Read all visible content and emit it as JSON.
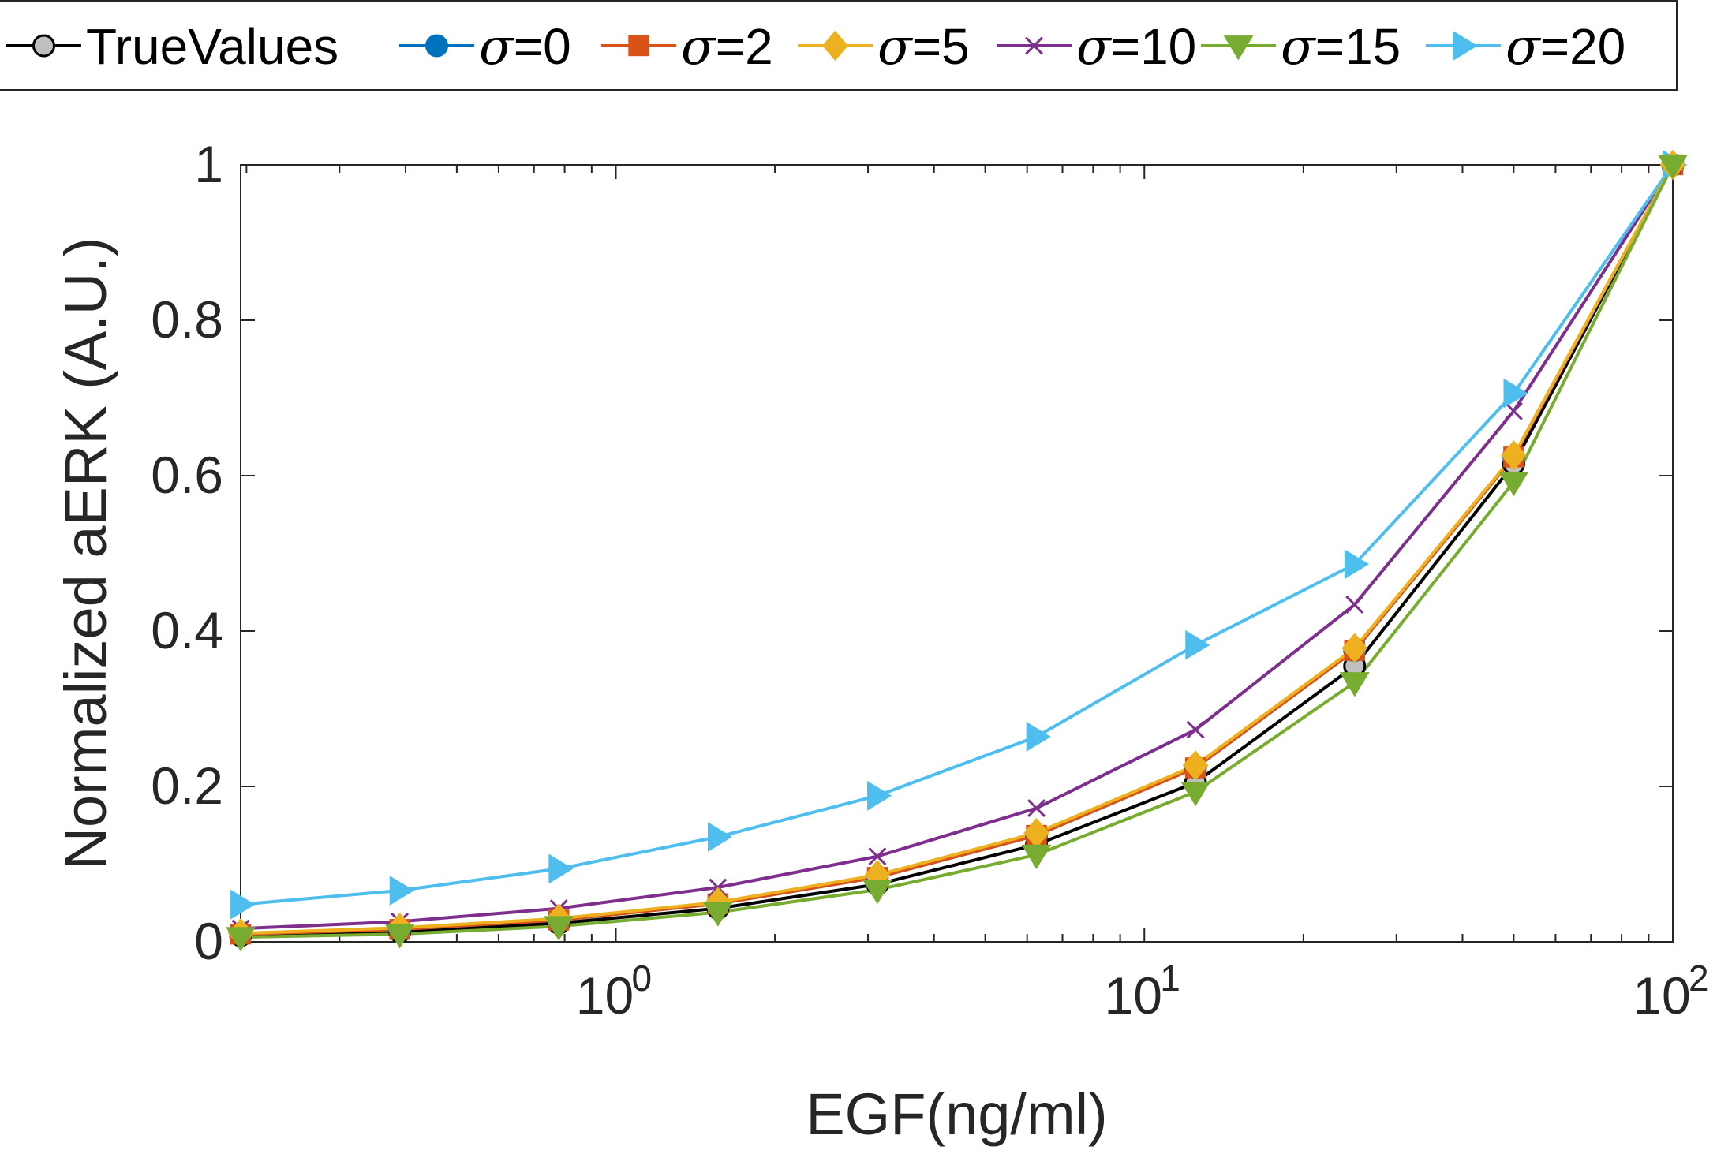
{
  "chart_data": {
    "type": "line",
    "xscale": "log",
    "xlim": [
      0.195,
      100
    ],
    "ylim": [
      0,
      1
    ],
    "xlabel": "EGF(ng/ml)",
    "ylabel": "Normalized aERK (A.U.)",
    "xticks": [
      {
        "value": 1,
        "base": "10",
        "exp": "0"
      },
      {
        "value": 10,
        "base": "10",
        "exp": "1"
      },
      {
        "value": 100,
        "base": "10",
        "exp": "2"
      }
    ],
    "yticks": [
      {
        "value": 0,
        "label": "0"
      },
      {
        "value": 0.2,
        "label": "0.2"
      },
      {
        "value": 0.4,
        "label": "0.4"
      },
      {
        "value": 0.6,
        "label": "0.6"
      },
      {
        "value": 0.8,
        "label": "0.8"
      },
      {
        "value": 1,
        "label": "1"
      }
    ],
    "grid": false,
    "legend_position": "top, outside",
    "x": [
      0.195,
      0.39,
      0.78,
      1.56,
      3.125,
      6.25,
      12.5,
      25,
      50,
      100
    ],
    "series": [
      {
        "name": "TrueValues",
        "symbol": "",
        "label": "TrueValues",
        "color": "#000000",
        "marker": "circle",
        "fill": "#bfbfbf",
        "values": [
          0.008,
          0.013,
          0.024,
          0.043,
          0.074,
          0.125,
          0.205,
          0.355,
          0.615,
          1.0
        ]
      },
      {
        "name": "σ=0",
        "symbol": "σ",
        "label": "=0",
        "color": "#0072BD",
        "marker": "circle",
        "fill": "#0072BD",
        "values": [
          0.01,
          0.016,
          0.028,
          0.049,
          0.083,
          0.137,
          0.224,
          0.375,
          0.625,
          1.0
        ]
      },
      {
        "name": "σ=2",
        "symbol": "σ",
        "label": "=2",
        "color": "#D95319",
        "marker": "square",
        "fill": "#D95319",
        "values": [
          0.01,
          0.016,
          0.028,
          0.049,
          0.083,
          0.137,
          0.224,
          0.375,
          0.624,
          1.0
        ]
      },
      {
        "name": "σ=5",
        "symbol": "σ",
        "label": "=5",
        "color": "#EDB120",
        "marker": "diamond",
        "fill": "#EDB120",
        "values": [
          0.011,
          0.018,
          0.03,
          0.051,
          0.086,
          0.14,
          0.227,
          0.378,
          0.626,
          1.0
        ]
      },
      {
        "name": "σ=10",
        "symbol": "σ",
        "label": "=10",
        "color": "#7E2F8E",
        "marker": "x",
        "fill": "none",
        "values": [
          0.017,
          0.026,
          0.043,
          0.07,
          0.11,
          0.172,
          0.273,
          0.434,
          0.683,
          1.0
        ]
      },
      {
        "name": "σ=15",
        "symbol": "σ",
        "label": "=15",
        "color": "#77AC30",
        "marker": "triangle-down",
        "fill": "#77AC30",
        "values": [
          0.006,
          0.01,
          0.02,
          0.038,
          0.067,
          0.112,
          0.193,
          0.334,
          0.592,
          1.0
        ]
      },
      {
        "name": "σ=20",
        "symbol": "σ",
        "label": "=20",
        "color": "#4DBEEE",
        "marker": "triangle-right",
        "fill": "#4DBEEE",
        "values": [
          0.048,
          0.066,
          0.094,
          0.135,
          0.188,
          0.264,
          0.382,
          0.486,
          0.706,
          1.0
        ]
      }
    ]
  }
}
